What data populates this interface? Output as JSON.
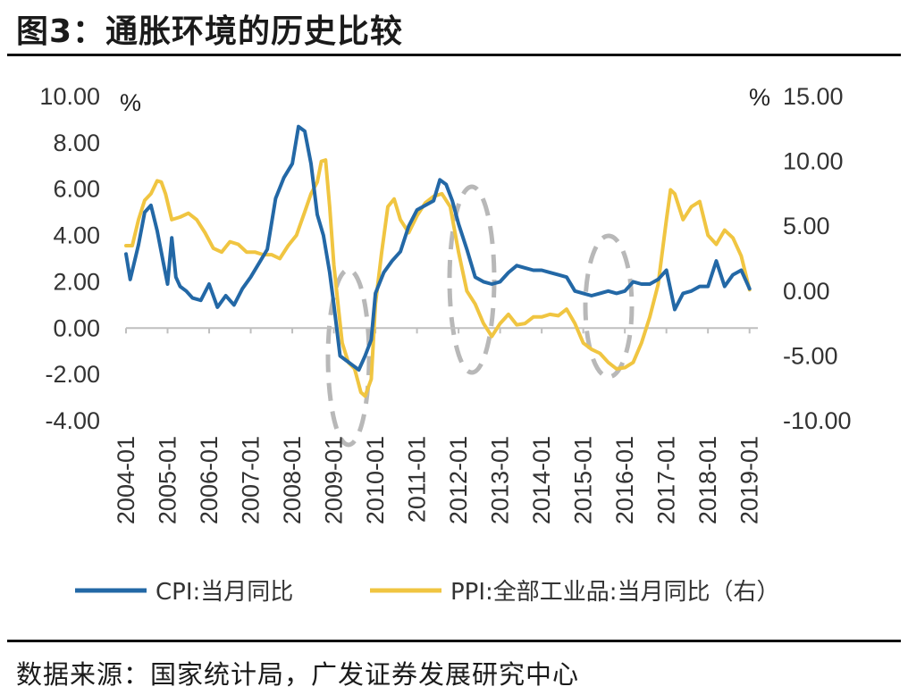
{
  "title": "图3：通胀环境的历史比较",
  "source": "数据来源：国家统计局，广发证券发展研究中心",
  "colors": {
    "cpi": "#2368a6",
    "ppi": "#f0c541",
    "highlight": "#b8b8b8",
    "axis": "#bfbfbf"
  },
  "chart_data": {
    "type": "line",
    "x_tick_labels": [
      "2004-01",
      "2005-01",
      "2006-01",
      "2007-01",
      "2008-01",
      "2009-01",
      "2010-01",
      "2011-01",
      "2012-01",
      "2013-01",
      "2014-01",
      "2015-01",
      "2016-01",
      "2017-01",
      "2018-01",
      "2019-01"
    ],
    "x_range": [
      2004.0,
      2019.2
    ],
    "y_left": {
      "unit": "%",
      "range": [
        -4,
        10
      ],
      "ticks": [
        10,
        8,
        6,
        4,
        2,
        0,
        -2,
        -4
      ],
      "tick_labels": [
        "10.00",
        "8.00",
        "6.00",
        "4.00",
        "2.00",
        "0.00",
        "-2.00",
        "-4.00"
      ]
    },
    "y_right": {
      "unit": "%",
      "range": [
        -10,
        15
      ],
      "ticks": [
        15,
        10,
        5,
        0,
        -5,
        -10
      ],
      "tick_labels": [
        "15.00",
        "10.00",
        "5.00",
        "0.00",
        "-5.00",
        "-10.00"
      ]
    },
    "series": [
      {
        "name": "CPI:当月同比",
        "axis": "left",
        "x": [
          2004.0,
          2004.1,
          2004.3,
          2004.45,
          2004.6,
          2004.75,
          2004.9,
          2005.0,
          2005.1,
          2005.2,
          2005.3,
          2005.45,
          2005.6,
          2005.8,
          2006.0,
          2006.2,
          2006.4,
          2006.6,
          2006.8,
          2007.0,
          2007.2,
          2007.4,
          2007.6,
          2007.8,
          2008.0,
          2008.15,
          2008.3,
          2008.45,
          2008.6,
          2008.75,
          2008.9,
          2009.0,
          2009.15,
          2009.3,
          2009.45,
          2009.6,
          2009.75,
          2009.9,
          2010.0,
          2010.2,
          2010.4,
          2010.6,
          2010.8,
          2011.0,
          2011.2,
          2011.4,
          2011.55,
          2011.7,
          2011.85,
          2012.0,
          2012.2,
          2012.4,
          2012.6,
          2012.8,
          2013.0,
          2013.2,
          2013.4,
          2013.6,
          2013.8,
          2014.0,
          2014.2,
          2014.4,
          2014.6,
          2014.8,
          2015.0,
          2015.2,
          2015.4,
          2015.6,
          2015.8,
          2016.0,
          2016.2,
          2016.4,
          2016.6,
          2016.8,
          2017.0,
          2017.2,
          2017.4,
          2017.6,
          2017.8,
          2018.0,
          2018.2,
          2018.4,
          2018.6,
          2018.8,
          2019.0
        ],
        "values": [
          3.2,
          2.1,
          3.6,
          5.0,
          5.3,
          4.2,
          2.8,
          1.9,
          3.9,
          2.2,
          1.8,
          1.6,
          1.3,
          1.2,
          1.9,
          0.9,
          1.4,
          1.0,
          1.7,
          2.2,
          2.8,
          3.4,
          5.6,
          6.5,
          7.1,
          8.7,
          8.5,
          7.1,
          4.9,
          4.0,
          2.4,
          1.0,
          -1.2,
          -1.4,
          -1.6,
          -1.8,
          -1.2,
          -0.5,
          1.5,
          2.4,
          2.9,
          3.3,
          4.4,
          5.1,
          5.3,
          5.5,
          6.4,
          6.2,
          5.5,
          4.5,
          3.4,
          2.2,
          2.0,
          1.9,
          2.0,
          2.4,
          2.7,
          2.6,
          2.5,
          2.5,
          2.4,
          2.3,
          2.2,
          1.6,
          1.5,
          1.4,
          1.5,
          1.6,
          1.5,
          1.6,
          2.0,
          1.9,
          1.9,
          2.1,
          2.5,
          0.8,
          1.5,
          1.6,
          1.8,
          1.8,
          2.9,
          1.8,
          2.3,
          2.5,
          1.7
        ]
      },
      {
        "name": "PPI:全部工业品:当月同比（右）",
        "axis": "right",
        "x": [
          2004.0,
          2004.15,
          2004.3,
          2004.45,
          2004.6,
          2004.75,
          2004.85,
          2004.95,
          2005.1,
          2005.3,
          2005.5,
          2005.7,
          2005.9,
          2006.1,
          2006.3,
          2006.5,
          2006.7,
          2006.9,
          2007.1,
          2007.3,
          2007.5,
          2007.7,
          2007.9,
          2008.1,
          2008.3,
          2008.45,
          2008.6,
          2008.7,
          2008.8,
          2008.9,
          2009.0,
          2009.1,
          2009.2,
          2009.35,
          2009.5,
          2009.65,
          2009.75,
          2009.9,
          2010.0,
          2010.15,
          2010.3,
          2010.45,
          2010.6,
          2010.8,
          2011.0,
          2011.2,
          2011.4,
          2011.6,
          2011.8,
          2012.0,
          2012.2,
          2012.4,
          2012.6,
          2012.8,
          2013.0,
          2013.2,
          2013.4,
          2013.6,
          2013.8,
          2014.0,
          2014.2,
          2014.4,
          2014.6,
          2014.8,
          2015.0,
          2015.2,
          2015.4,
          2015.6,
          2015.8,
          2016.0,
          2016.2,
          2016.4,
          2016.6,
          2016.8,
          2017.0,
          2017.1,
          2017.2,
          2017.4,
          2017.6,
          2017.8,
          2018.0,
          2018.2,
          2018.4,
          2018.6,
          2018.8,
          2019.0
        ],
        "values": [
          3.5,
          3.5,
          5.5,
          7.0,
          7.5,
          8.5,
          8.4,
          7.5,
          5.5,
          5.7,
          6.0,
          5.5,
          4.5,
          3.3,
          3.0,
          3.8,
          3.6,
          3.0,
          3.0,
          2.8,
          2.8,
          2.5,
          3.5,
          4.3,
          6.1,
          7.5,
          8.4,
          10.0,
          10.1,
          6.5,
          2.0,
          -1.0,
          -4.0,
          -5.5,
          -6.0,
          -7.8,
          -8.1,
          -6.8,
          -1.0,
          3.0,
          6.5,
          7.1,
          5.5,
          4.5,
          5.8,
          6.8,
          7.3,
          7.5,
          6.5,
          3.0,
          0.0,
          -1.0,
          -2.5,
          -3.5,
          -2.5,
          -1.8,
          -2.6,
          -2.5,
          -2.0,
          -2.0,
          -1.8,
          -1.9,
          -1.4,
          -2.5,
          -4.0,
          -4.5,
          -4.8,
          -5.5,
          -6.0,
          -5.9,
          -5.5,
          -4.0,
          -2.0,
          0.5,
          5.5,
          7.8,
          7.5,
          5.5,
          6.5,
          6.9,
          4.3,
          3.6,
          4.7,
          4.1,
          2.7,
          0.1
        ]
      }
    ],
    "highlight_regions": [
      "2009 trough",
      "2012-2013 transition",
      "2015-2016 trough"
    ],
    "legend_position": "bottom"
  }
}
